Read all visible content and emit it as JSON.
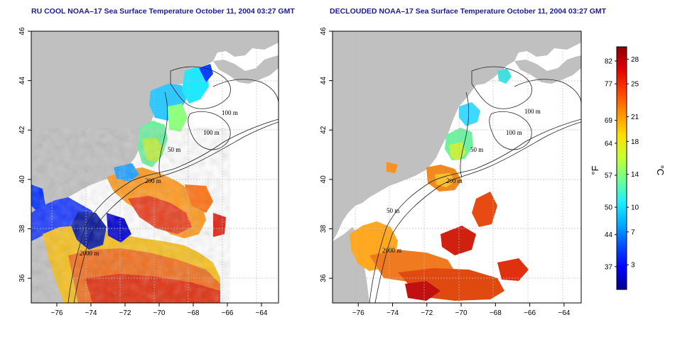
{
  "titles": {
    "left": "RU COOL NOAA–17 Sea Surface Temperature October 11, 2004 03:27 GMT",
    "right": "DECLOUDED NOAA–17 Sea Surface Temperature October 11, 2004 03:27 GMT"
  },
  "axes": {
    "x_ticks": [
      {
        "value": -76,
        "label": "−76"
      },
      {
        "value": -74,
        "label": "−74"
      },
      {
        "value": -72,
        "label": "−72"
      },
      {
        "value": -70,
        "label": "−70"
      },
      {
        "value": -68,
        "label": "−68"
      },
      {
        "value": -66,
        "label": "−66"
      },
      {
        "value": -64,
        "label": "−64"
      }
    ],
    "y_ticks": [
      {
        "value": 36,
        "label": "36"
      },
      {
        "value": 38,
        "label": "38"
      },
      {
        "value": 40,
        "label": "40"
      },
      {
        "value": 42,
        "label": "42"
      },
      {
        "value": 44,
        "label": "44"
      },
      {
        "value": 46,
        "label": "46"
      }
    ],
    "lon_range": [
      -77.5,
      -63
    ],
    "lat_range": [
      35,
      46
    ]
  },
  "contour_labels": {
    "left": [
      "100 m",
      "100 m",
      "50 m",
      "200 m",
      "2000 m"
    ],
    "right": [
      "100 m",
      "100 m",
      "50 m",
      "200 m",
      "50 m",
      "2000 m"
    ]
  },
  "colorbar": {
    "fahrenheit_label": "°F",
    "celsius_label": "°C",
    "fahrenheit_ticks": [
      "82",
      "77",
      "69",
      "64",
      "57",
      "50",
      "44",
      "37"
    ],
    "celsius_ticks": [
      "28",
      "25",
      "21",
      "18",
      "14",
      "10",
      "7",
      "3"
    ],
    "celsius_range": [
      0,
      29.5
    ],
    "colors": [
      "#00008f",
      "#0000ff",
      "#0050ff",
      "#00b0ff",
      "#20f0ff",
      "#70ff90",
      "#c8ff30",
      "#ffe000",
      "#ff9000",
      "#ff4000",
      "#e00000",
      "#8f0000"
    ]
  },
  "colors": {
    "land": "#c0c0c0",
    "ocean": "#ffffff",
    "grid": "#bdbdbd",
    "title": "#1a1a9a"
  }
}
